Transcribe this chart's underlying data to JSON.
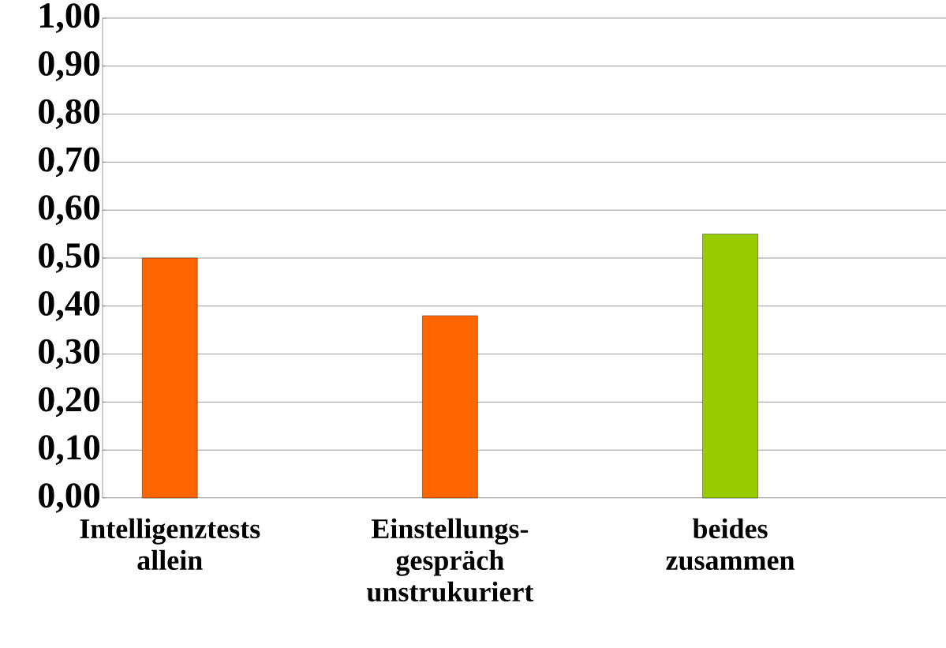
{
  "chart_data": {
    "type": "bar",
    "categories": [
      "Intelligenztests allein",
      "Einstellungs-gespräch unstrukuriert",
      "beides zusammen"
    ],
    "values": [
      0.5,
      0.38,
      0.55
    ],
    "colors": [
      "#ff6600",
      "#ff6600",
      "#99cc00"
    ],
    "ylim": [
      0,
      1
    ],
    "yticks": [
      {
        "value": 0,
        "label": "0,00"
      },
      {
        "value": 0.1,
        "label": "0,10"
      },
      {
        "value": 0.2,
        "label": "0,20"
      },
      {
        "value": 0.3,
        "label": "0,30"
      },
      {
        "value": 0.4,
        "label": "0,40"
      },
      {
        "value": 0.5,
        "label": "0,50"
      },
      {
        "value": 0.6,
        "label": "0,60"
      },
      {
        "value": 0.7,
        "label": "0,70"
      },
      {
        "value": 0.8,
        "label": "0,80"
      },
      {
        "value": 0.9,
        "label": "0,90"
      },
      {
        "value": 1,
        "label": "1,00"
      }
    ],
    "grid": "y"
  }
}
